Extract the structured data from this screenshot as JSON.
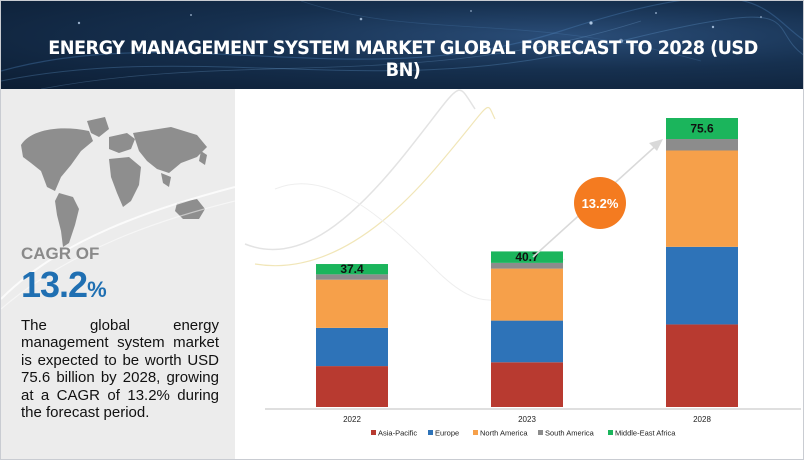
{
  "title": "ENERGY MANAGEMENT SYSTEM MARKET GLOBAL FORECAST TO 2028 (USD BN)",
  "cagr": {
    "label": "CAGR OF",
    "value": "13.2",
    "unit": "%"
  },
  "description": "The global energy management system market is expected to be worth USD 75.6 billion by 2028, growing at a CAGR of 13.2% during the forecast period.",
  "colors": {
    "asia_pacific": "#b83a30",
    "europe": "#2e73b8",
    "north_america": "#f6a04a",
    "south_america": "#8c8c8c",
    "middle_east_africa": "#1bb55c",
    "bubble": "#f47b20"
  },
  "chart_data": {
    "type": "bar",
    "stacked": true,
    "title": "ENERGY MANAGEMENT SYSTEM MARKET GLOBAL FORECAST TO 2028 (USD BN)",
    "categories": [
      "2022",
      "2023",
      "2028"
    ],
    "totals": [
      "37.4",
      "40.7",
      "75.6"
    ],
    "series": [
      {
        "name": "Asia-Pacific",
        "values": [
          10.7,
          11.7,
          21.6
        ]
      },
      {
        "name": "Europe",
        "values": [
          10.0,
          10.9,
          20.3
        ]
      },
      {
        "name": "North America",
        "values": [
          12.6,
          13.6,
          25.2
        ]
      },
      {
        "name": "South America",
        "values": [
          1.4,
          1.5,
          3.0
        ]
      },
      {
        "name": "Middle-East Africa",
        "values": [
          2.7,
          3.0,
          5.5
        ]
      }
    ],
    "cagr_annotation": "13.2%",
    "xlabel": "",
    "ylabel": "",
    "ylim": [
      0,
      75.6
    ],
    "legend_position": "bottom"
  }
}
